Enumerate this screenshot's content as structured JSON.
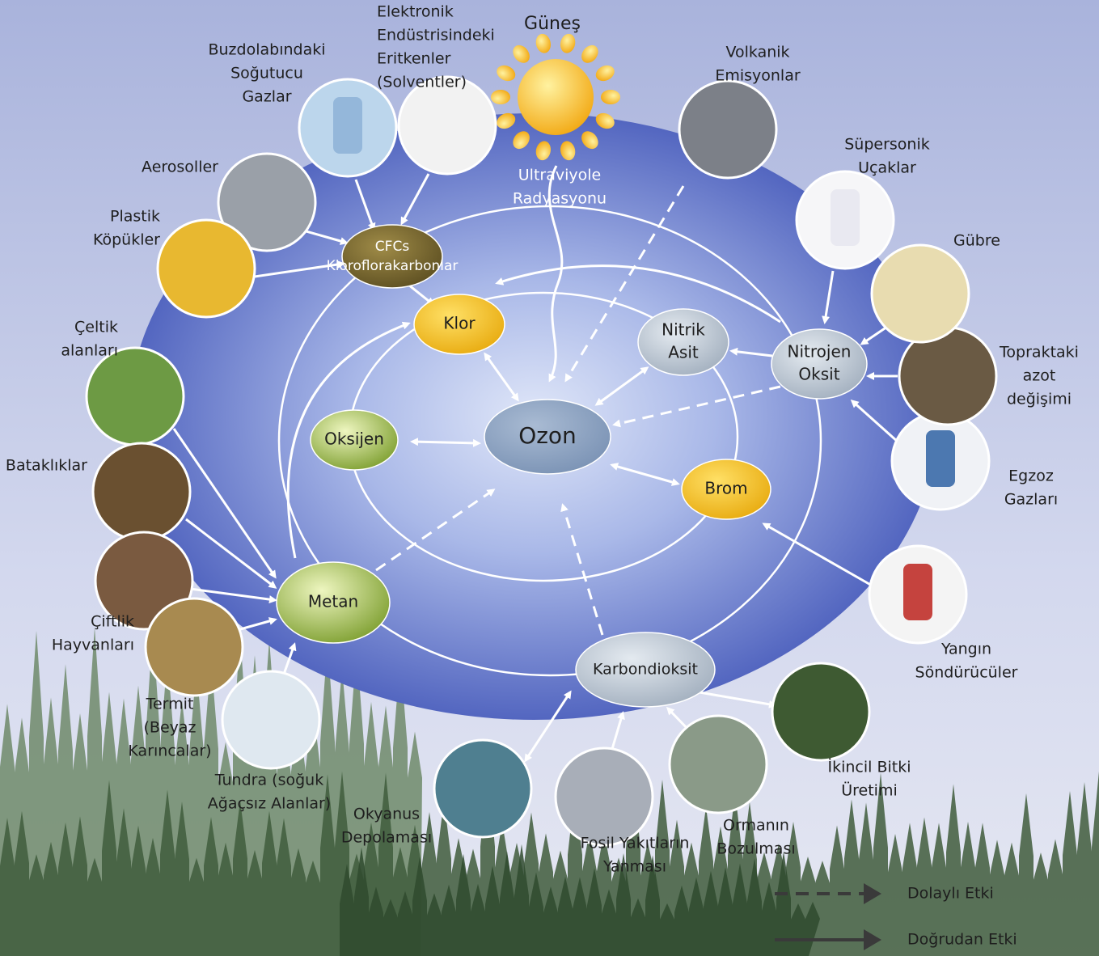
{
  "sun": {
    "label": "Güneş",
    "radiation": [
      "Ultraviyole",
      "Radyasyonu"
    ]
  },
  "nodes": [
    {
      "label": [
        "Ozon"
      ]
    },
    {
      "label": [
        "Klor"
      ]
    },
    {
      "label": [
        "Oksijen"
      ]
    },
    {
      "label": [
        "Metan"
      ]
    },
    {
      "label": [
        "Brom"
      ]
    },
    {
      "label": [
        "Nitrik",
        "Asit"
      ]
    },
    {
      "label": [
        "Nitrojen",
        "Oksit"
      ]
    },
    {
      "label": [
        "Karbondioksit"
      ]
    },
    {
      "label": [
        "CFCs",
        "Kloroflorakarbonlar"
      ]
    }
  ],
  "sources": [
    {
      "label": [
        "Buzdolabındaki",
        "Soğutucu",
        "Gazlar"
      ]
    },
    {
      "label": [
        "Elektronik",
        "Endüstrisindeki",
        "Eritkenler",
        "(Solventler)"
      ]
    },
    {
      "label": [
        "Aerosoller"
      ]
    },
    {
      "label": [
        "Plastik",
        "Köpükler"
      ]
    },
    {
      "label": [
        "Çeltik",
        "alanları"
      ]
    },
    {
      "label": [
        "Bataklıklar"
      ]
    },
    {
      "label": [
        "Çiftlik",
        "Hayvanları"
      ]
    },
    {
      "label": [
        "Termit",
        "(Beyaz",
        "Karıncalar)"
      ]
    },
    {
      "label": [
        "Tundra (soğuk",
        "Ağaçsız Alanlar)"
      ]
    },
    {
      "label": [
        "Okyanus",
        "Depolaması"
      ]
    },
    {
      "label": [
        "Fosil Yakıtların",
        "Yanması"
      ]
    },
    {
      "label": [
        "Ormanın",
        "Bozulması"
      ]
    },
    {
      "label": [
        "İkincil Bitki",
        "Üretimi"
      ]
    },
    {
      "label": [
        "Yangın",
        "Söndürücüler"
      ]
    },
    {
      "label": [
        "Egzoz",
        "Gazları"
      ]
    },
    {
      "label": [
        "Topraktaki",
        "azot",
        "değişimi"
      ]
    },
    {
      "label": [
        "Gübre"
      ]
    },
    {
      "label": [
        "Süpersonik",
        "Uçaklar"
      ]
    },
    {
      "label": [
        "Volkanik",
        "Emisyonlar"
      ]
    }
  ],
  "legend": {
    "indirect": "Dolaylı Etki",
    "direct": "Doğrudan Etki"
  }
}
